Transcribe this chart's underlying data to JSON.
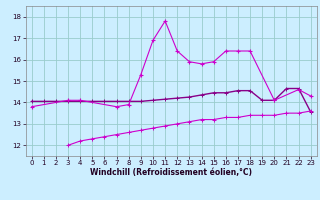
{
  "line1_x": [
    0,
    3,
    4,
    7,
    8,
    9,
    10,
    11,
    12,
    13,
    14,
    15,
    16,
    17,
    18,
    20,
    22,
    23
  ],
  "line1_y": [
    13.8,
    14.1,
    14.1,
    13.8,
    13.9,
    15.3,
    16.9,
    17.8,
    16.4,
    15.9,
    15.8,
    15.9,
    16.4,
    16.4,
    16.4,
    14.1,
    14.6,
    14.3
  ],
  "line2_x": [
    0,
    1,
    2,
    3,
    4,
    5,
    6,
    7,
    8,
    9,
    10,
    11,
    12,
    13,
    14,
    15,
    16,
    17,
    18,
    19,
    20,
    21,
    22,
    23
  ],
  "line2_y": [
    14.05,
    14.05,
    14.05,
    14.05,
    14.05,
    14.05,
    14.05,
    14.05,
    14.05,
    14.05,
    14.1,
    14.15,
    14.2,
    14.25,
    14.35,
    14.45,
    14.45,
    14.55,
    14.55,
    14.1,
    14.1,
    14.65,
    14.65,
    13.55
  ],
  "line3_x": [
    3,
    4,
    5,
    6,
    7,
    8,
    9,
    10,
    11,
    12,
    13,
    14,
    15,
    16,
    17,
    18,
    19,
    20,
    21,
    22,
    23
  ],
  "line3_y": [
    12.0,
    12.2,
    12.3,
    12.4,
    12.5,
    12.6,
    12.7,
    12.8,
    12.9,
    13.0,
    13.1,
    13.2,
    13.2,
    13.3,
    13.3,
    13.4,
    13.4,
    13.4,
    13.5,
    13.5,
    13.6
  ],
  "line1_color": "#cc00cc",
  "line2_color": "#880088",
  "line3_color": "#cc00cc",
  "bg_color": "#cceeff",
  "grid_color": "#99cccc",
  "xlabel": "Windchill (Refroidissement éolien,°C)",
  "xlim": [
    -0.5,
    23.5
  ],
  "ylim": [
    11.5,
    18.5
  ],
  "yticks": [
    12,
    13,
    14,
    15,
    16,
    17,
    18
  ],
  "xticks": [
    0,
    1,
    2,
    3,
    4,
    5,
    6,
    7,
    8,
    9,
    10,
    11,
    12,
    13,
    14,
    15,
    16,
    17,
    18,
    19,
    20,
    21,
    22,
    23
  ]
}
